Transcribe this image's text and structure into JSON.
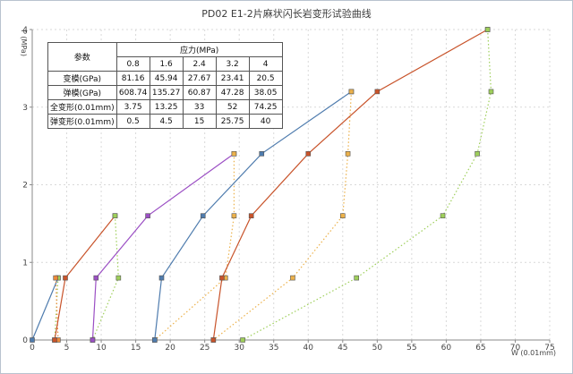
{
  "chart_data": {
    "type": "line",
    "title": "PD02 E1-2片麻状闪长岩变形试验曲线",
    "xlabel": "W (0.01mm)",
    "ylabel": "P (MPa)",
    "xlim": [
      0,
      75
    ],
    "ylim": [
      0,
      4
    ],
    "x_ticks": [
      "0",
      "5",
      "10",
      "15",
      "20",
      "25",
      "30",
      "35",
      "40",
      "45",
      "50",
      "55",
      "60",
      "65",
      "70",
      "75"
    ],
    "y_ticks": [
      "0",
      "1",
      "2",
      "3",
      "4"
    ],
    "grid": true,
    "series": [
      {
        "color": "#4f7cae",
        "dash": false,
        "points": [
          [
            0,
            0
          ],
          [
            3.75,
            0.8
          ]
        ]
      },
      {
        "color": "#9ecf5a",
        "dash": true,
        "points": [
          [
            3.75,
            0.8
          ],
          [
            3.25,
            0
          ]
        ]
      },
      {
        "color": "#ec8a3a",
        "dash": true,
        "points": [
          [
            3.75,
            0
          ],
          [
            3.4,
            0.8
          ]
        ]
      },
      {
        "color": "#c8532a",
        "dash": false,
        "points": [
          [
            3.25,
            0
          ],
          [
            4.8,
            0.8
          ],
          [
            12,
            1.6
          ]
        ]
      },
      {
        "color": "#9ecf5a",
        "dash": true,
        "points": [
          [
            12,
            1.6
          ],
          [
            12.5,
            0.8
          ],
          [
            8.75,
            0
          ]
        ]
      },
      {
        "color": "#9b4fc4",
        "dash": false,
        "points": [
          [
            8.75,
            0
          ],
          [
            9.25,
            0.8
          ],
          [
            16.75,
            1.6
          ],
          [
            29.25,
            2.4
          ]
        ]
      },
      {
        "color": "#ecb14a",
        "dash": true,
        "points": [
          [
            29.25,
            2.4
          ],
          [
            29.25,
            1.6
          ],
          [
            28,
            0.8
          ],
          [
            17.75,
            0
          ]
        ]
      },
      {
        "color": "#4f7cae",
        "dash": false,
        "points": [
          [
            17.75,
            0
          ],
          [
            18.75,
            0.8
          ],
          [
            24.75,
            1.6
          ],
          [
            33.25,
            2.4
          ],
          [
            46.25,
            3.2
          ]
        ]
      },
      {
        "color": "#ecb14a",
        "dash": true,
        "points": [
          [
            46.25,
            3.2
          ],
          [
            45.75,
            2.4
          ],
          [
            45,
            1.6
          ],
          [
            37.75,
            0.8
          ],
          [
            26.25,
            0
          ]
        ]
      },
      {
        "color": "#c8532a",
        "dash": false,
        "points": [
          [
            26.25,
            0
          ],
          [
            27.5,
            0.8
          ],
          [
            31.75,
            1.6
          ],
          [
            40,
            2.4
          ],
          [
            50,
            3.2
          ],
          [
            66,
            4
          ]
        ]
      },
      {
        "color": "#9ecf5a",
        "dash": true,
        "points": [
          [
            66,
            4
          ],
          [
            66.5,
            3.2
          ],
          [
            64.5,
            2.4
          ],
          [
            59.5,
            1.6
          ],
          [
            47,
            0.8
          ],
          [
            30.5,
            0
          ]
        ]
      }
    ]
  },
  "table": {
    "param_header": "参数",
    "stress_header": "应力(MPa)",
    "stress_values": [
      "0.8",
      "1.6",
      "2.4",
      "3.2",
      "4"
    ],
    "rows": [
      {
        "label": "变模(GPa)",
        "values": [
          "81.16",
          "45.94",
          "27.67",
          "23.41",
          "20.5"
        ]
      },
      {
        "label": "弹模(GPa)",
        "values": [
          "608.74",
          "135.27",
          "60.87",
          "47.28",
          "38.05"
        ]
      },
      {
        "label": "全变形(0.01mm)",
        "values": [
          "3.75",
          "13.25",
          "33",
          "52",
          "74.25"
        ]
      },
      {
        "label": "弹变形(0.01mm)",
        "values": [
          "0.5",
          "4.5",
          "15",
          "25.75",
          "40"
        ]
      }
    ]
  }
}
